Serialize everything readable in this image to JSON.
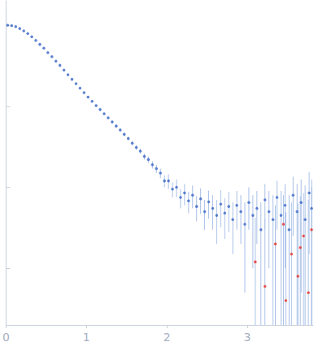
{
  "chart_data": {
    "type": "scatter",
    "xlim": [
      0,
      3.82
    ],
    "xticks": [
      0,
      1,
      2,
      3
    ],
    "ylim": [
      0.002,
      20
    ],
    "yticks": [
      0.01,
      0.1,
      1,
      10
    ],
    "log": "y",
    "tick_labels": "x",
    "grid": false,
    "series": [
      {
        "color": "#3a66c4",
        "marker": "circle",
        "x": [
          0.02,
          0.07,
          0.12,
          0.17,
          0.22,
          0.27,
          0.32,
          0.37,
          0.42,
          0.47,
          0.52,
          0.57,
          0.62,
          0.67,
          0.72,
          0.77,
          0.82,
          0.87,
          0.92,
          0.97,
          1.02,
          1.07,
          1.12,
          1.17,
          1.22,
          1.27,
          1.32,
          1.37,
          1.42,
          1.47,
          1.52,
          1.57,
          1.62,
          1.67,
          1.72,
          1.77,
          1.82,
          1.87,
          1.92,
          1.97,
          2.02,
          2.07,
          2.12,
          2.17,
          2.22,
          2.27,
          2.32,
          2.37,
          2.42,
          2.47,
          2.52,
          2.57,
          2.62,
          2.67,
          2.72,
          2.77,
          2.82,
          2.87,
          2.92,
          2.97,
          3.02,
          3.07,
          3.12,
          3.17,
          3.22,
          3.27,
          3.32,
          3.37,
          3.42,
          3.47,
          3.52,
          3.57,
          3.62,
          3.67,
          3.72,
          3.77,
          3.8
        ],
        "values": [
          10.0,
          9.9,
          9.6,
          9.1,
          8.5,
          7.9,
          7.2,
          6.5,
          5.8,
          5.2,
          4.6,
          4.1,
          3.6,
          3.2,
          2.8,
          2.45,
          2.15,
          1.9,
          1.67,
          1.47,
          1.3,
          1.15,
          1.02,
          0.91,
          0.81,
          0.72,
          0.64,
          0.57,
          0.51,
          0.45,
          0.4,
          0.35,
          0.31,
          0.28,
          0.24,
          0.22,
          0.19,
          0.17,
          0.15,
          0.12,
          0.12,
          0.095,
          0.1,
          0.075,
          0.085,
          0.068,
          0.08,
          0.058,
          0.072,
          0.05,
          0.066,
          0.055,
          0.045,
          0.062,
          0.048,
          0.058,
          0.04,
          0.06,
          0.05,
          0.035,
          0.065,
          0.045,
          0.055,
          0.03,
          0.07,
          0.05,
          0.04,
          0.075,
          0.045,
          0.06,
          0.03,
          0.08,
          0.05,
          0.065,
          0.04,
          0.085,
          0.055
        ],
        "errors": [
          0.05,
          0.05,
          0.05,
          0.05,
          0.05,
          0.04,
          0.04,
          0.04,
          0.04,
          0.03,
          0.03,
          0.03,
          0.03,
          0.03,
          0.03,
          0.03,
          0.02,
          0.02,
          0.02,
          0.02,
          0.02,
          0.02,
          0.02,
          0.02,
          0.02,
          0.02,
          0.02,
          0.02,
          0.02,
          0.02,
          0.02,
          0.02,
          0.02,
          0.02,
          0.02,
          0.02,
          0.02,
          0.02,
          0.02,
          0.02,
          0.025,
          0.02,
          0.025,
          0.02,
          0.025,
          0.02,
          0.025,
          0.02,
          0.025,
          0.02,
          0.025,
          0.025,
          0.025,
          0.03,
          0.025,
          0.03,
          0.025,
          0.03,
          0.03,
          0.03,
          0.035,
          0.035,
          0.035,
          0.035,
          0.04,
          0.04,
          0.04,
          0.045,
          0.045,
          0.05,
          0.05,
          0.055,
          0.06,
          0.06,
          0.065,
          0.07,
          0.07
        ]
      },
      {
        "color": "#e8302a",
        "marker": "circle",
        "x": [
          3.1,
          3.22,
          3.35,
          3.45,
          3.48,
          3.55,
          3.63,
          3.66,
          3.7,
          3.76,
          3.8
        ],
        "values": [
          0.012,
          0.006,
          0.02,
          0.035,
          0.004,
          0.015,
          0.008,
          0.018,
          0.025,
          0.005,
          0.03
        ],
        "errors": [
          0.03,
          0.035,
          0.04,
          0.045,
          0.045,
          0.05,
          0.055,
          0.06,
          0.06,
          0.065,
          0.07
        ]
      }
    ]
  }
}
